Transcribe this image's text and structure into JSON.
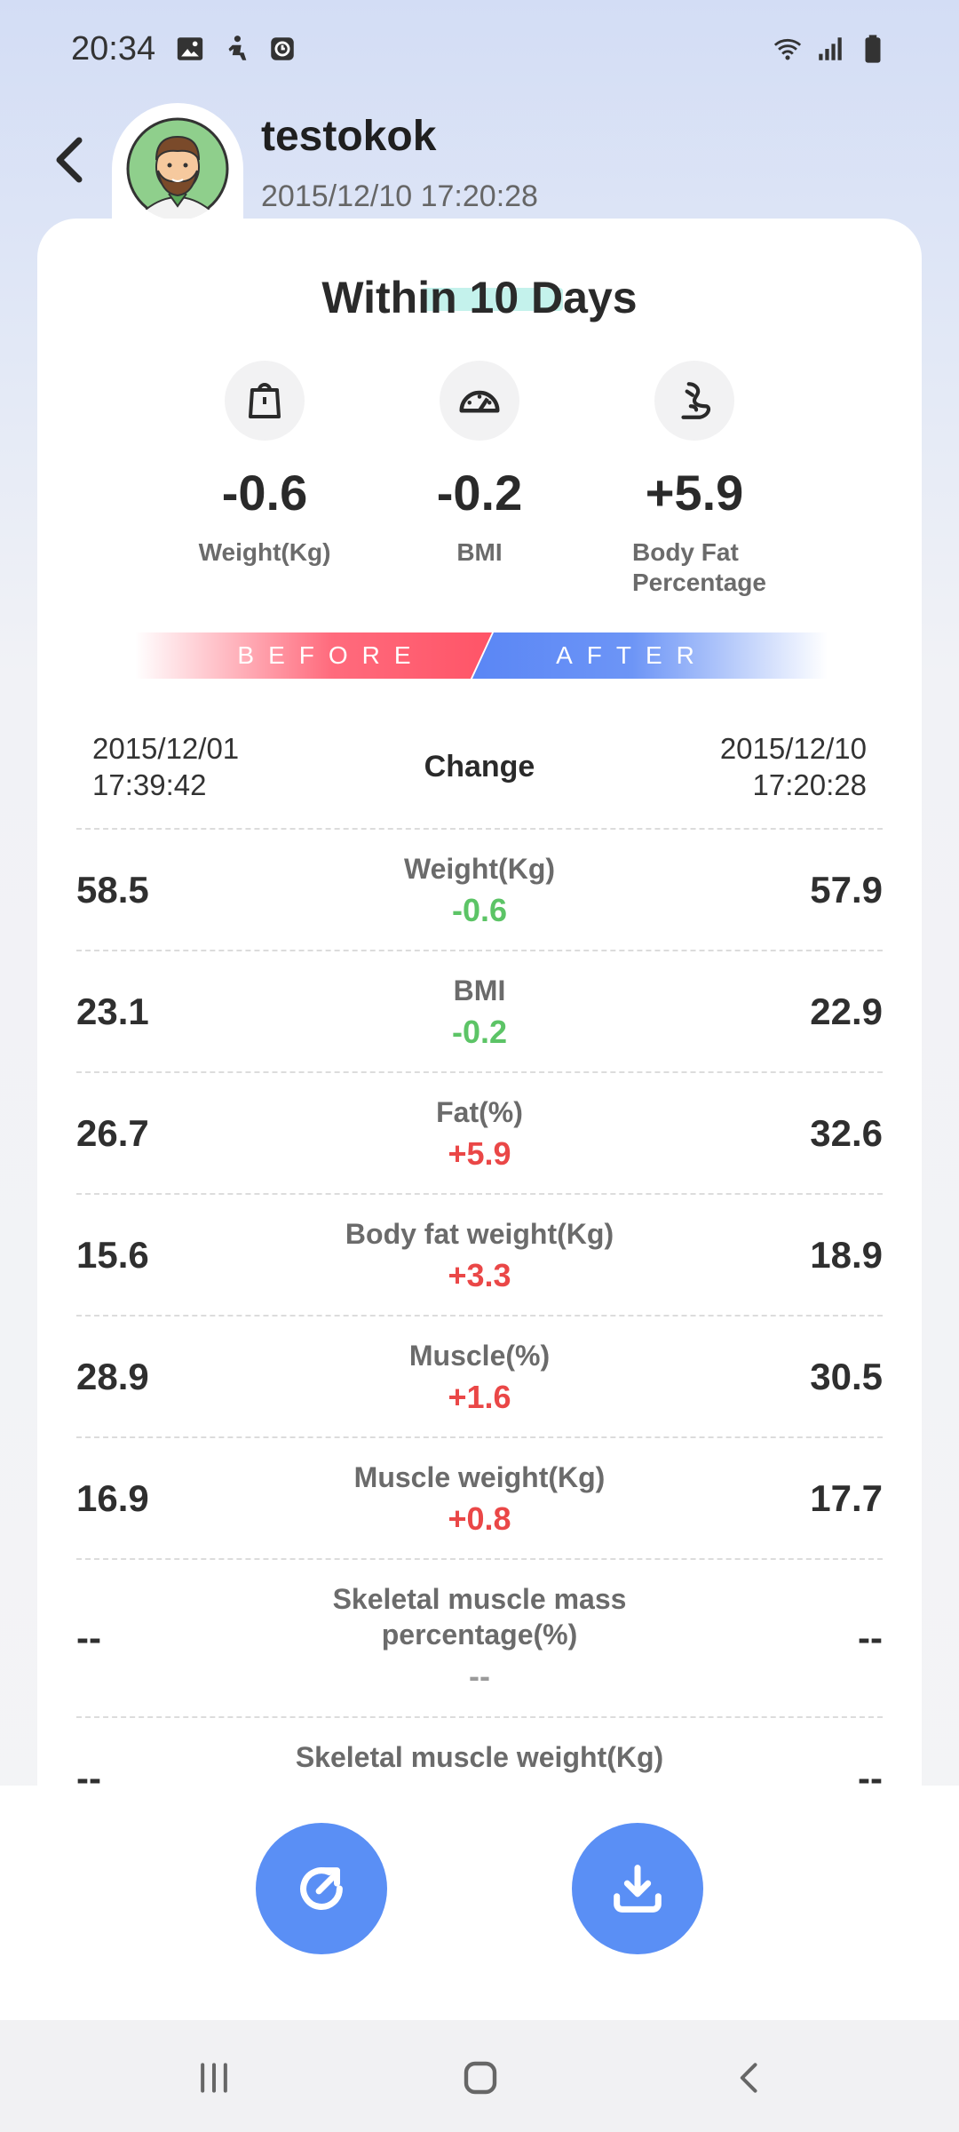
{
  "status_bar": {
    "time": "20:34",
    "left_icons": [
      "image-icon",
      "accessibility-icon",
      "clock-app-icon"
    ],
    "right_icons": [
      "wifi-icon",
      "signal-icon",
      "battery-icon"
    ]
  },
  "header": {
    "back_icon": "chevron-left-icon",
    "user_name": "testokok",
    "datetime": "2015/12/10 17:20:28"
  },
  "card": {
    "title": "Within 10 Days",
    "summary": [
      {
        "icon": "scale-icon",
        "value": "-0.6",
        "label": "Weight(Kg)"
      },
      {
        "icon": "gauge-icon",
        "value": "-0.2",
        "label": "BMI"
      },
      {
        "icon": "body-fat-icon",
        "value": "+5.9",
        "label": "Body Fat Percentage"
      }
    ],
    "before_label": "BEFORE",
    "after_label": "AFTER",
    "before_date": "2015/12/01",
    "before_time": "17:39:42",
    "change_label": "Change",
    "after_date": "2015/12/10",
    "after_time": "17:20:28",
    "rows": [
      {
        "name": "Weight(Kg)",
        "before": "58.5",
        "change": "-0.6",
        "after": "57.9"
      },
      {
        "name": "BMI",
        "before": "23.1",
        "change": "-0.2",
        "after": "22.9"
      },
      {
        "name": "Fat(%)",
        "before": "26.7",
        "change": "+5.9",
        "after": "32.6"
      },
      {
        "name": "Body fat weight(Kg)",
        "before": "15.6",
        "change": "+3.3",
        "after": "18.9"
      },
      {
        "name": "Muscle(%)",
        "before": "28.9",
        "change": "+1.6",
        "after": "30.5"
      },
      {
        "name": "Muscle weight(Kg)",
        "before": "16.9",
        "change": "+0.8",
        "after": "17.7"
      },
      {
        "name": "Skeletal muscle mass percentage(%)",
        "before": "--",
        "change": "--",
        "after": "--"
      },
      {
        "name": "Skeletal muscle weight(Kg)",
        "before": "--",
        "change": "",
        "after": "--"
      }
    ]
  },
  "actions": {
    "share_icon": "share-icon",
    "download_icon": "download-icon"
  },
  "colors": {
    "accent_blue": "#5a8ff5",
    "decrease_green": "#5cc466",
    "increase_red": "#ea4747",
    "before_pink": "#ff5467",
    "after_blue": "#5a86f5"
  },
  "nav": {
    "icons": [
      "recent-apps-icon",
      "home-icon",
      "back-icon"
    ]
  }
}
